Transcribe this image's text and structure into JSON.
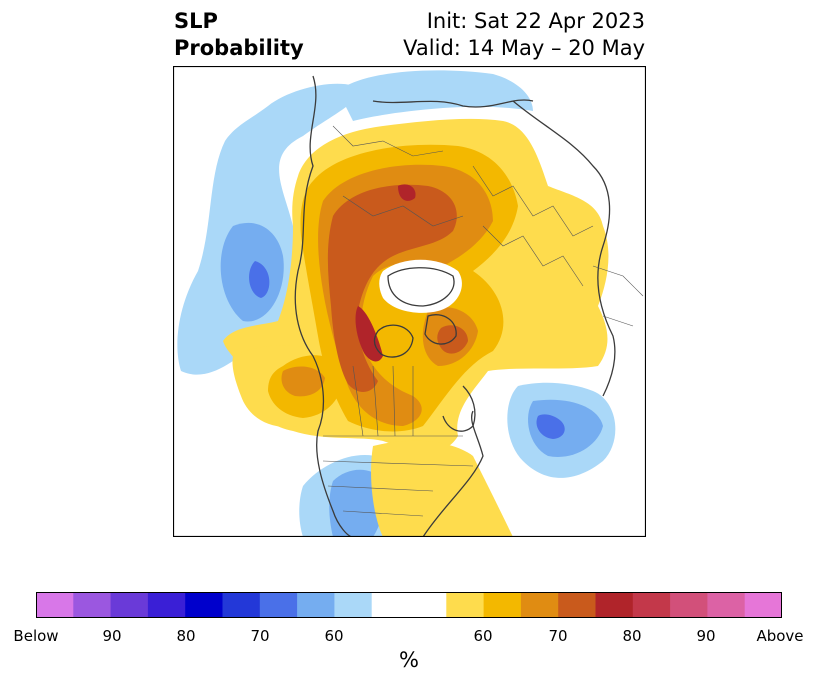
{
  "title": {
    "left_line1": "SLP",
    "left_line2": "Probability",
    "right_line1": "Init: Sat 22 Apr 2023",
    "right_line2": "Valid: 14 May – 20 May"
  },
  "colorbar": {
    "unit": "%",
    "colors": [
      "#d877e8",
      "#9b57e0",
      "#6a3ad8",
      "#3a1fd6",
      "#0000cc",
      "#2338d8",
      "#4a70e8",
      "#75adf0",
      "#aad8f8",
      "#ffffff",
      "#fedc4d",
      "#f3b800",
      "#e08c12",
      "#c95a1c",
      "#b0242a",
      "#c3384a",
      "#d2507a",
      "#dc62a5",
      "#e676d8"
    ],
    "ticks": [
      "Below",
      "90",
      "80",
      "70",
      "60",
      "60",
      "70",
      "80",
      "90",
      "Above"
    ]
  },
  "legend_colors": {
    "below_light": "#aad8f8",
    "below_mid": "#75adf0",
    "below_dark": "#4a70e8",
    "above_light": "#fedc4d",
    "above_mid": "#f3b800",
    "above_orange": "#e08c12",
    "above_dark": "#c95a1c",
    "above_red": "#b0242a"
  }
}
